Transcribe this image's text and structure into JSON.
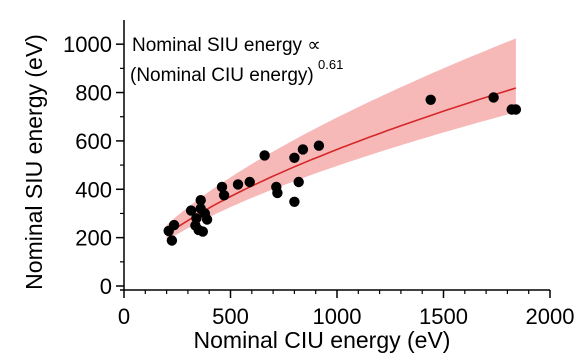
{
  "chart_data": {
    "type": "scatter",
    "xlabel": "Nominal CIU energy (eV)",
    "ylabel": "Nominal SIU energy (eV)",
    "xlim": [
      0,
      2000
    ],
    "ylim": [
      0,
      1100
    ],
    "xticks": [
      "0",
      "500",
      "1000",
      "1500",
      "2000"
    ],
    "yticks": [
      "0",
      "200",
      "400",
      "600",
      "800",
      "1000"
    ],
    "annotation": {
      "line1": "Nominal SIU energy ∝",
      "line2": "(Nominal CIU energy)",
      "exponent": "0.61"
    },
    "grid": false,
    "colors": {
      "points": "#000000",
      "fit_line": "#d62728",
      "band": "#f4a0a0"
    },
    "points": [
      {
        "x": 210,
        "y": 228
      },
      {
        "x": 225,
        "y": 188
      },
      {
        "x": 235,
        "y": 252
      },
      {
        "x": 315,
        "y": 312
      },
      {
        "x": 335,
        "y": 250
      },
      {
        "x": 340,
        "y": 280
      },
      {
        "x": 350,
        "y": 232
      },
      {
        "x": 360,
        "y": 320
      },
      {
        "x": 360,
        "y": 355
      },
      {
        "x": 370,
        "y": 225
      },
      {
        "x": 380,
        "y": 300
      },
      {
        "x": 390,
        "y": 275
      },
      {
        "x": 460,
        "y": 410
      },
      {
        "x": 470,
        "y": 375
      },
      {
        "x": 535,
        "y": 420
      },
      {
        "x": 590,
        "y": 430
      },
      {
        "x": 660,
        "y": 540
      },
      {
        "x": 715,
        "y": 410
      },
      {
        "x": 720,
        "y": 385
      },
      {
        "x": 800,
        "y": 348
      },
      {
        "x": 800,
        "y": 530
      },
      {
        "x": 820,
        "y": 430
      },
      {
        "x": 840,
        "y": 565
      },
      {
        "x": 915,
        "y": 580
      },
      {
        "x": 1440,
        "y": 770
      },
      {
        "x": 1735,
        "y": 780
      },
      {
        "x": 1820,
        "y": 730
      },
      {
        "x": 1840,
        "y": 730
      }
    ],
    "fit": {
      "exponent": 0.61,
      "coefficient": 8.35,
      "x_range": [
        200,
        1840
      ],
      "band_lower_coefficient": 7.55,
      "band_upper_coefficient": 8.85,
      "band_lower_exponent": 0.606,
      "band_upper_exponent": 0.632
    }
  }
}
